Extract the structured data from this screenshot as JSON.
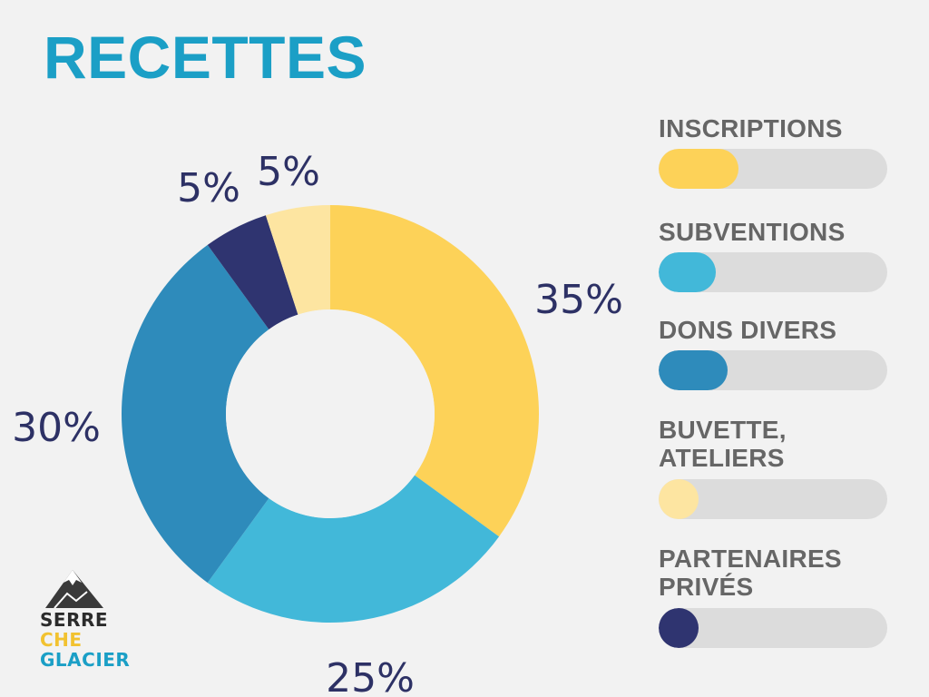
{
  "page": {
    "title": "RECETTES"
  },
  "colors": {
    "title": "#1b9fc6",
    "label_text": "#2d3165",
    "legend_text": "#666666",
    "track": "#dcdcdc",
    "background": "#f2f2f2"
  },
  "chart_data": {
    "type": "pie",
    "variant": "donut",
    "title": "RECETTES",
    "start_angle_deg": 0,
    "direction": "clockwise",
    "slices": [
      {
        "label": "INSCRIPTIONS",
        "value": 35,
        "display": "35%",
        "color": "#fdd258"
      },
      {
        "label": "SUBVENTIONS",
        "value": 25,
        "display": "25%",
        "color": "#42b8d9"
      },
      {
        "label": "DONS DIVERS",
        "value": 30,
        "display": "30%",
        "color": "#2e8bbb"
      },
      {
        "label": "PARTENAIRES PRIVÉS",
        "value": 5,
        "display": "5%",
        "color": "#2f3470"
      },
      {
        "label": "BUVETTE, ATELIERS",
        "value": 5,
        "display": "5%",
        "color": "#fde5a1"
      }
    ]
  },
  "legend": {
    "items": [
      {
        "label": "INSCRIPTIONS",
        "fill_fraction": 0.35,
        "color": "#fdd258"
      },
      {
        "label": "SUBVENTIONS",
        "fill_fraction": 0.25,
        "color": "#42b8d9"
      },
      {
        "label": "DONS DIVERS",
        "fill_fraction": 0.3,
        "color": "#2e8bbb"
      },
      {
        "label": "BUVETTE,\nATELIERS",
        "fill_fraction": 0.05,
        "color": "#fde5a1"
      },
      {
        "label": "PARTENAIRES\nPRIVÉS",
        "fill_fraction": 0.05,
        "color": "#2f3470"
      }
    ]
  },
  "logo": {
    "lines": [
      "SERRE",
      "CHE",
      "GLACIER"
    ],
    "colors": [
      "#2b2b2b",
      "#f2c230",
      "#1b9fc6"
    ]
  }
}
